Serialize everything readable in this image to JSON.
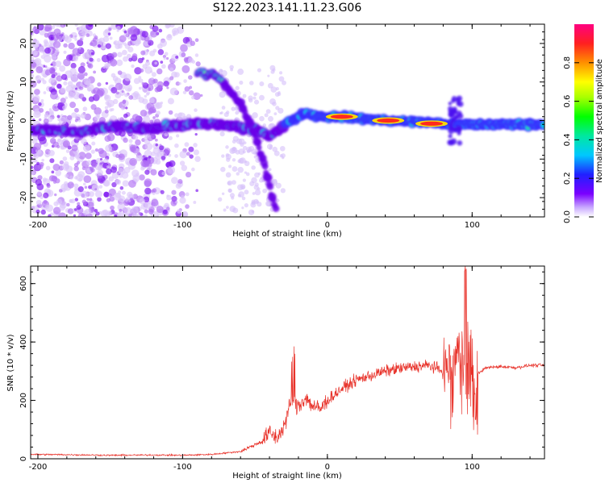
{
  "title": "S122.2023.141.11.23.G06",
  "chart_data": [
    {
      "type": "heatmap",
      "xlabel": "Height of straight line (km)",
      "ylabel": "Frequency (Hz)",
      "xlim": [
        -205,
        150
      ],
      "ylim": [
        -25,
        25
      ],
      "xticks": [
        -200,
        -100,
        0,
        100
      ],
      "yticks": [
        -20,
        -10,
        0,
        10,
        20
      ],
      "colorbar": {
        "label": "Normalized spectral amplitude",
        "ticks": [
          0.0,
          0.2,
          0.4,
          0.6,
          0.8
        ],
        "range": [
          0,
          1
        ]
      },
      "ridge": [
        {
          "x": -205,
          "y": -2.5
        },
        {
          "x": -170,
          "y": -3
        },
        {
          "x": -150,
          "y": -1.5
        },
        {
          "x": -125,
          "y": -2
        },
        {
          "x": -95,
          "y": -1
        },
        {
          "x": -75,
          "y": -1
        },
        {
          "x": -55,
          "y": -2
        },
        {
          "x": -40,
          "y": -4
        },
        {
          "x": -25,
          "y": 0
        },
        {
          "x": -15,
          "y": 2
        },
        {
          "x": -5,
          "y": 1
        },
        {
          "x": 10,
          "y": 1
        },
        {
          "x": 40,
          "y": 0
        },
        {
          "x": 70,
          "y": -0.5
        },
        {
          "x": 88,
          "y": -1
        },
        {
          "x": 100,
          "y": -1
        },
        {
          "x": 150,
          "y": -1
        }
      ],
      "branch": [
        {
          "x": -88,
          "y": 12.5
        },
        {
          "x": -78,
          "y": 12
        },
        {
          "x": -68,
          "y": 8
        },
        {
          "x": -58,
          "y": 3
        },
        {
          "x": -50,
          "y": -4
        },
        {
          "x": -43,
          "y": -12
        },
        {
          "x": -38,
          "y": -20
        },
        {
          "x": -35,
          "y": -24
        }
      ],
      "hotspots": [
        {
          "x": 10,
          "y": 1,
          "amp": 1.0
        },
        {
          "x": 42,
          "y": 0,
          "amp": 0.9
        },
        {
          "x": 72,
          "y": -0.8,
          "amp": 0.8
        }
      ]
    },
    {
      "type": "line",
      "xlabel": "Height of straight line (km)",
      "ylabel": "SNR (10 * v/v)",
      "xlim": [
        -205,
        150
      ],
      "ylim": [
        0,
        660
      ],
      "xticks": [
        -200,
        -100,
        0,
        100
      ],
      "yticks": [
        0,
        200,
        400,
        600
      ],
      "series": [
        {
          "color": "#e8322a",
          "x": [
            -205,
            -180,
            -150,
            -120,
            -100,
            -80,
            -60,
            -45,
            -40,
            -35,
            -30,
            -25,
            -20,
            -15,
            -10,
            -5,
            0,
            10,
            20,
            30,
            40,
            50,
            60,
            70,
            80,
            85,
            90,
            95,
            100,
            103,
            110,
            120,
            130,
            140,
            150
          ],
          "y": [
            15,
            14,
            12,
            13,
            12,
            15,
            25,
            60,
            90,
            70,
            110,
            200,
            180,
            210,
            180,
            170,
            200,
            240,
            270,
            285,
            300,
            310,
            315,
            320,
            300,
            320,
            350,
            380,
            330,
            290,
            312,
            316,
            312,
            320,
            320
          ]
        }
      ]
    }
  ]
}
